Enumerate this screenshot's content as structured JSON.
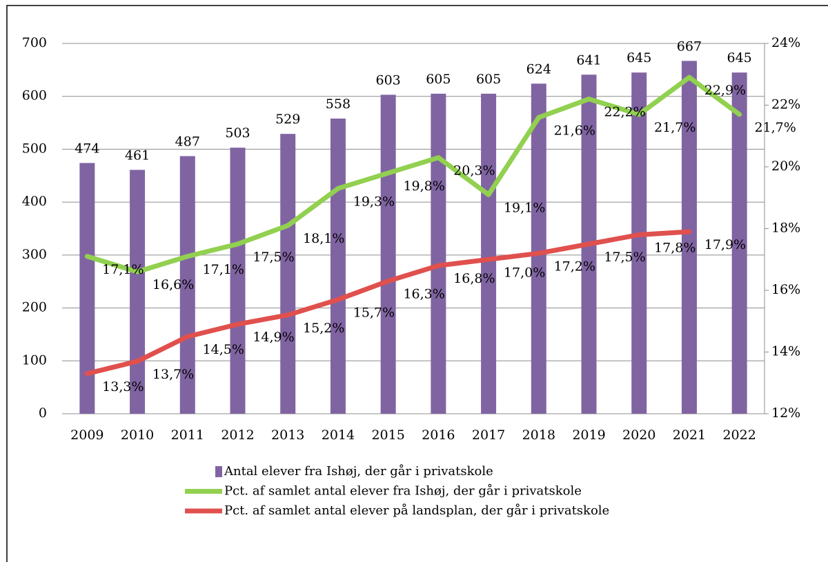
{
  "chart_data": {
    "type": "bar",
    "categories": [
      "2009",
      "2010",
      "2011",
      "2012",
      "2013",
      "2014",
      "2015",
      "2016",
      "2017",
      "2018",
      "2019",
      "2020",
      "2021",
      "2022"
    ],
    "series": [
      {
        "name": "Antal elever fra Ishøj, der går i privatskole",
        "type": "bar",
        "color": "#8064a2",
        "values": [
          474,
          461,
          487,
          503,
          529,
          558,
          603,
          605,
          605,
          624,
          641,
          645,
          667,
          645
        ]
      },
      {
        "name": "Pct. af samlet antal elever fra Ishøj, der går i privatskole",
        "type": "line",
        "axis": "y2",
        "color": "#92d050",
        "values": [
          17.1,
          16.6,
          17.1,
          17.5,
          18.1,
          19.3,
          19.8,
          20.3,
          19.1,
          21.6,
          22.2,
          21.7,
          22.9,
          21.7
        ],
        "value_labels": [
          "17,1%",
          "16,6%",
          "17,1%",
          "17,5%",
          "18,1%",
          "19,3%",
          "19,8%",
          "20,3%",
          "19,1%",
          "21,6%",
          "22,2%",
          "21,7%",
          "22,9%",
          "21,7%"
        ]
      },
      {
        "name": "Pct. af samlet antal elever på landsplan, der går i privatskole",
        "type": "line",
        "axis": "y2",
        "color": "#e0504d",
        "values": [
          13.3,
          13.7,
          14.5,
          14.9,
          15.2,
          15.7,
          16.3,
          16.8,
          17.0,
          17.2,
          17.5,
          17.8,
          17.9,
          null
        ],
        "value_labels": [
          "13,3%",
          "13,7%",
          "14,5%",
          "14,9%",
          "15,2%",
          "15,7%",
          "16,3%",
          "16,8%",
          "17,0%",
          "17,2%",
          "17,5%",
          "17,8%",
          "17,9%",
          null
        ]
      }
    ],
    "ylim": [
      0,
      700
    ],
    "yticks": [
      0,
      100,
      200,
      300,
      400,
      500,
      600,
      700
    ],
    "y2lim": [
      12,
      24
    ],
    "y2ticks": [
      {
        "value": 12,
        "label": "12%"
      },
      {
        "value": 14,
        "label": "14%"
      },
      {
        "value": 16,
        "label": "16%"
      },
      {
        "value": 18,
        "label": "18%"
      },
      {
        "value": 20,
        "label": "20%"
      },
      {
        "value": 22,
        "label": "22%"
      },
      {
        "value": 24,
        "label": "24%"
      }
    ],
    "grid": true,
    "legend": "bottom"
  }
}
